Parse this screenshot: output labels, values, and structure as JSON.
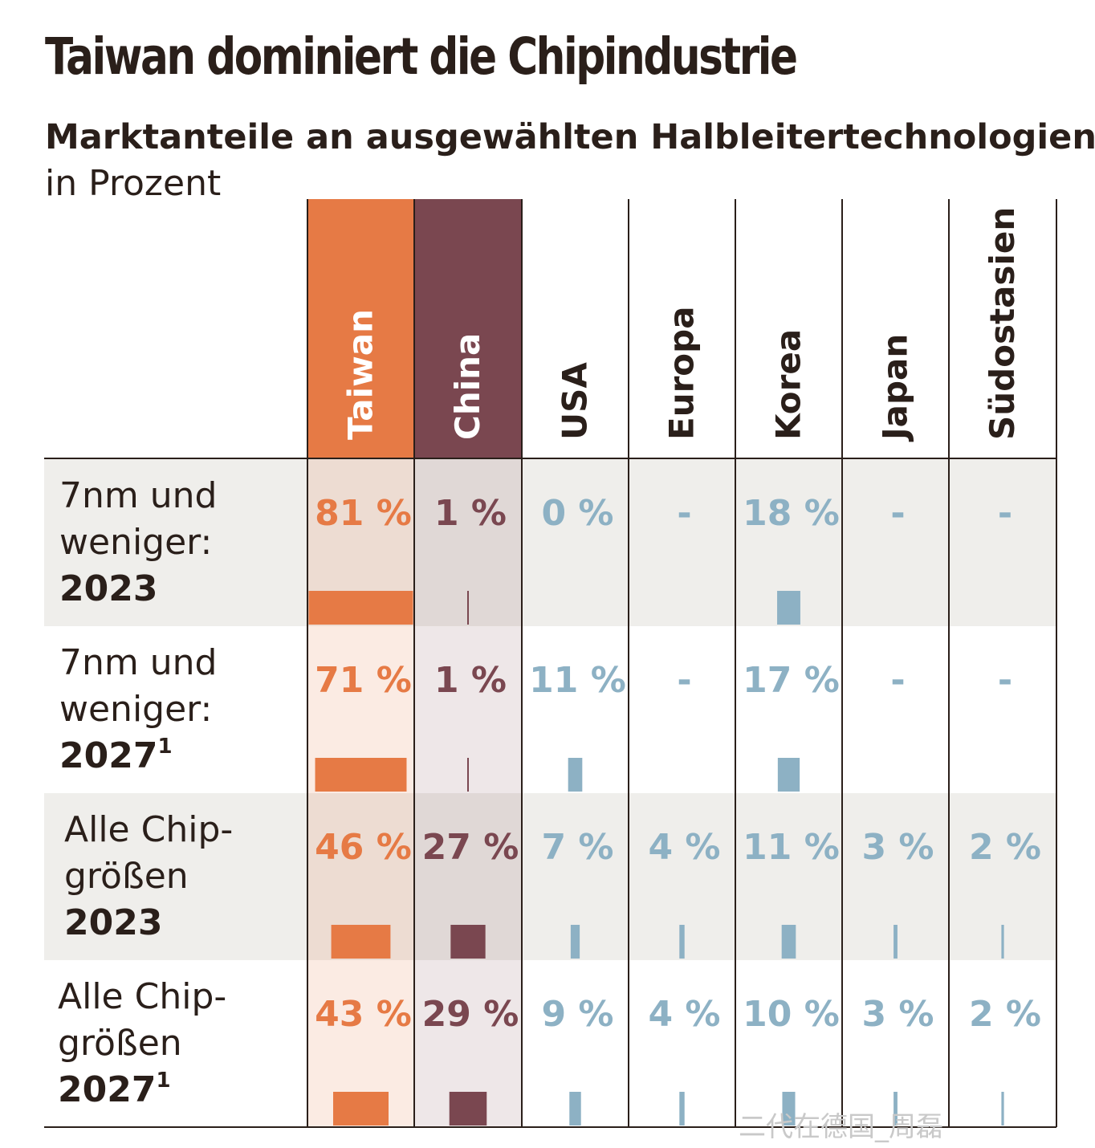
{
  "title": "Taiwan dominiert die Chipindustrie",
  "subtitle": "Marktanteile an ausgewählten Halbleitertechnologien",
  "unit_label": "in Prozent",
  "watermark": "二代在德国_周磊",
  "colors": {
    "taiwan": "#e67a45",
    "china": "#7a4750",
    "other": "#8db1c4",
    "row_shade": "#efeeeb",
    "taiwan_tint": "#fbe6dd",
    "china_tint": "#ebe3e3",
    "ink": "#2a1f1a"
  },
  "chart_data": {
    "type": "table",
    "unit": "%",
    "columns": [
      "Taiwan",
      "China",
      "USA",
      "Europa",
      "Korea",
      "Japan",
      "Südostasien"
    ],
    "rows": [
      {
        "label_lines": [
          "7nm und",
          "weniger:"
        ],
        "label_bold": "2023",
        "label_sup": "",
        "values": [
          81,
          1,
          0,
          null,
          18,
          null,
          null
        ],
        "display": [
          "81 %",
          "1 %",
          "0 %",
          "-",
          "18 %",
          "-",
          "-"
        ]
      },
      {
        "label_lines": [
          "7nm und",
          "weniger:"
        ],
        "label_bold": "2027",
        "label_sup": "1",
        "values": [
          71,
          1,
          11,
          null,
          17,
          null,
          null
        ],
        "display": [
          "71 %",
          "1 %",
          "11 %",
          "-",
          "17 %",
          "-",
          "-"
        ]
      },
      {
        "label_lines": [
          "Alle Chip-",
          "größen"
        ],
        "label_bold": "2023",
        "label_sup": "",
        "values": [
          46,
          27,
          7,
          4,
          11,
          3,
          2
        ],
        "display": [
          "46 %",
          "27 %",
          "7 %",
          "4 %",
          "11 %",
          "3 %",
          "2 %"
        ]
      },
      {
        "label_lines": [
          "Alle Chip-",
          "größen"
        ],
        "label_bold": "2027",
        "label_sup": "1",
        "values": [
          43,
          29,
          9,
          4,
          10,
          3,
          2
        ],
        "display": [
          "43 %",
          "29 %",
          "9 %",
          "4 %",
          "10 %",
          "3 %",
          "2 %"
        ]
      }
    ]
  }
}
